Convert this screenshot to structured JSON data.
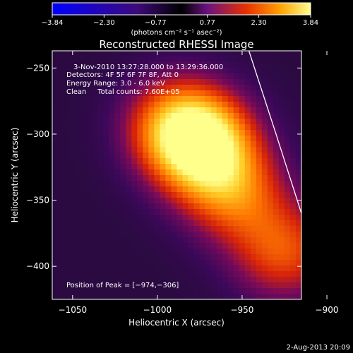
{
  "chart_data": {
    "type": "heatmap",
    "title": "Reconstructed RHESSI Image",
    "xlabel": "Heliocentric X (arcsec)",
    "ylabel": "Heliocentric Y (arcsec)",
    "xlim": [
      -1062,
      -915
    ],
    "ylim": [
      -425,
      -237
    ],
    "x_ticks": [
      -1050,
      -1000,
      -950,
      -900
    ],
    "y_ticks": [
      -250,
      -300,
      -350,
      -400
    ],
    "x_tick_labels": [
      "−1050",
      "−1000",
      "−950",
      "−900"
    ],
    "y_tick_labels": [
      "−250",
      "−300",
      "−350",
      "−400"
    ],
    "colorbar": {
      "ticks": [
        -3.84,
        -2.3,
        -0.77,
        0.77,
        2.3,
        3.84
      ],
      "tick_labels": [
        "−3.84",
        "−2.30",
        "−0.77",
        "0.77",
        "2.30",
        "3.84"
      ],
      "range": [
        -3.84,
        3.84
      ],
      "units": "(photons cm⁻² s⁻¹ asec⁻²)",
      "colors": [
        "#0000ff",
        "#000000",
        "#ff4000",
        "#ffa000",
        "#ffff80"
      ]
    },
    "annotations": [
      "3-Nov-2010 13:27:28.000 to 13:29:36.000",
      "Detectors: 4F 5F 6F 7F 8F, Att 0",
      "Energy Range: 3.0 - 6.0 keV",
      "Clean     Total counts: 7.60E+05"
    ],
    "peak_label": "Position of Peak = [−974,−306]",
    "peak": [
      -974,
      -306
    ],
    "source_components": [
      {
        "x": -975,
        "y": -307,
        "amplitude": 1.0
      },
      {
        "x": -990,
        "y": -290,
        "amplitude": 0.45
      },
      {
        "x": -955,
        "y": -345,
        "amplitude": 0.55
      },
      {
        "x": -925,
        "y": -390,
        "amplitude": 0.55
      }
    ],
    "limb_curve": [
      [
        -946,
        -237
      ],
      [
        -930,
        -300
      ],
      [
        -915,
        -360
      ],
      [
        -898,
        -425
      ]
    ],
    "timestamp": "2-Aug-2013 20:09",
    "grid": false,
    "legend": "none"
  },
  "colors": {
    "background": "#000000",
    "plot_background": "#2a0a40",
    "text": "#ffffff"
  }
}
